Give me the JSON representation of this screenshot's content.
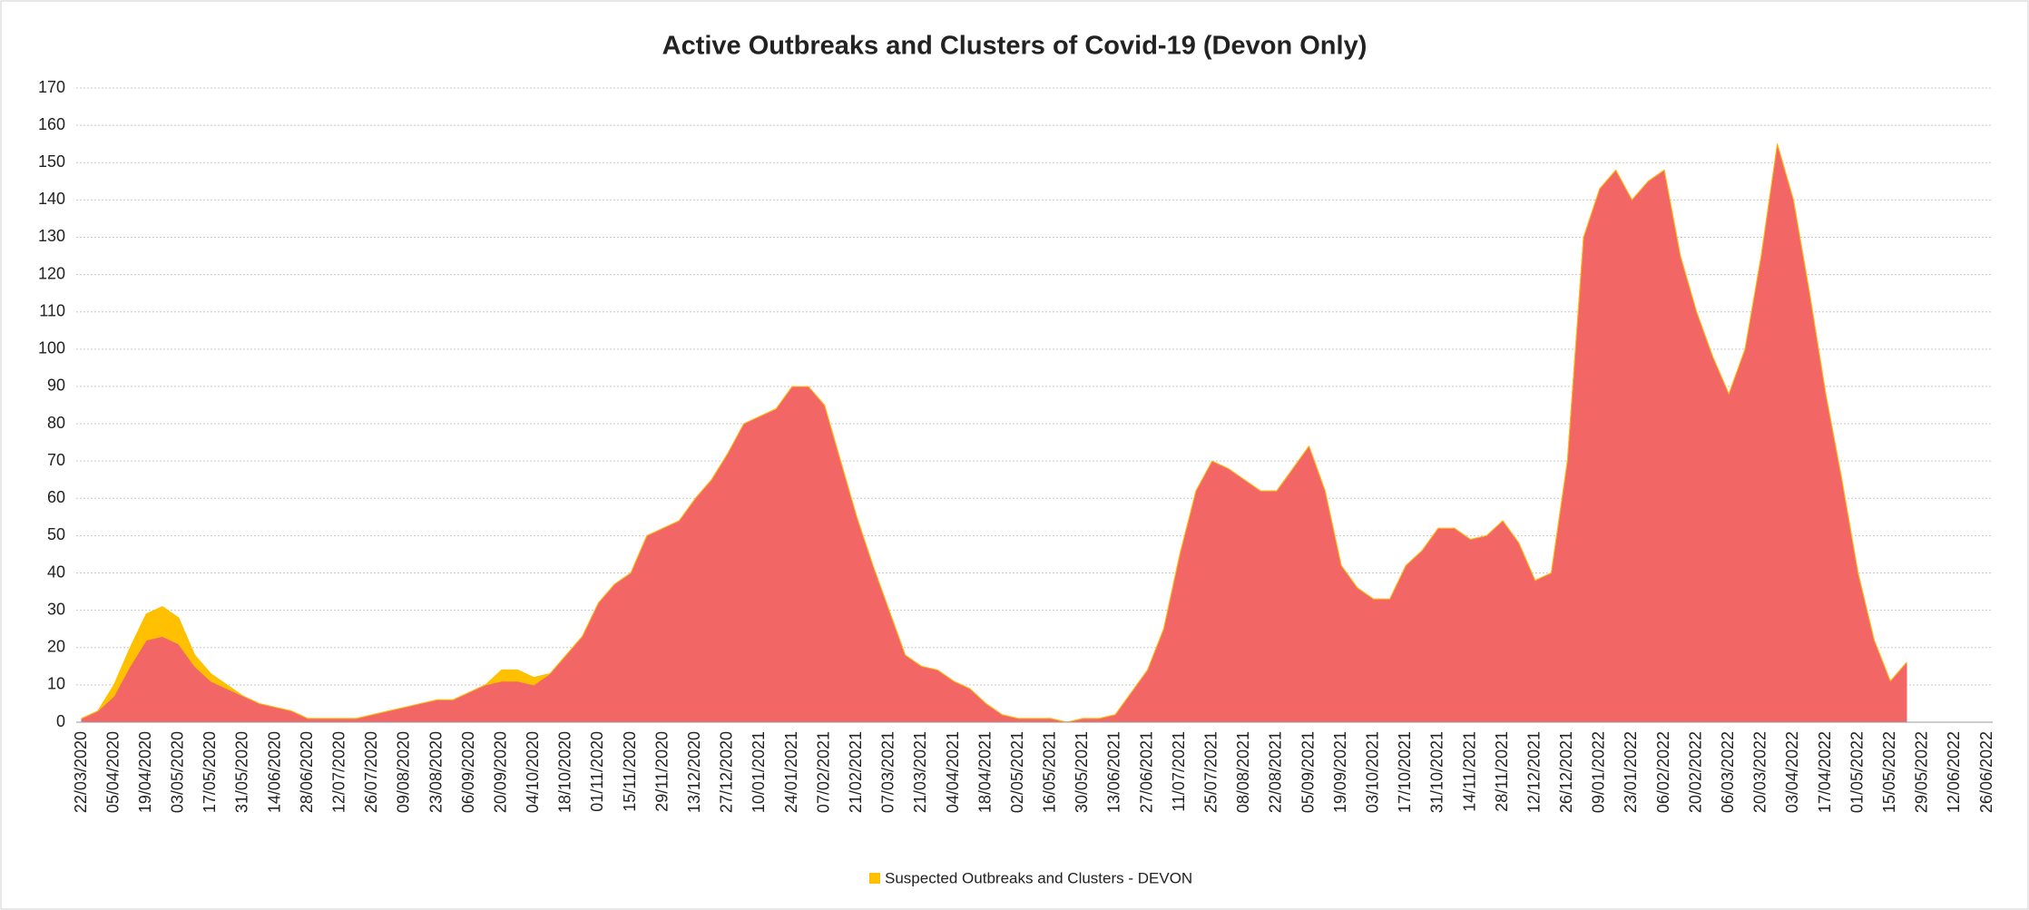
{
  "chart_data": {
    "type": "area",
    "stacked": true,
    "title": "Active Outbreaks and Clusters of Covid-19 (Devon Only)",
    "categories": [
      "22/03/2020",
      null,
      "05/04/2020",
      null,
      "19/04/2020",
      null,
      "03/05/2020",
      null,
      "17/05/2020",
      null,
      "31/05/2020",
      null,
      "14/06/2020",
      null,
      "28/06/2020",
      null,
      "12/07/2020",
      null,
      "26/07/2020",
      null,
      "09/08/2020",
      null,
      "23/08/2020",
      null,
      "06/09/2020",
      null,
      "20/09/2020",
      null,
      "04/10/2020",
      null,
      "18/10/2020",
      null,
      "01/11/2020",
      null,
      "15/11/2020",
      null,
      "29/11/2020",
      null,
      "13/12/2020",
      null,
      "27/12/2020",
      null,
      "10/01/2021",
      null,
      "24/01/2021",
      null,
      "07/02/2021",
      null,
      "21/02/2021",
      null,
      "07/03/2021",
      null,
      "21/03/2021",
      null,
      "04/04/2021",
      null,
      "18/04/2021",
      null,
      "02/05/2021",
      null,
      "16/05/2021",
      null,
      "30/05/2021",
      null,
      "13/06/2021",
      null,
      "27/06/2021",
      null,
      "11/07/2021",
      null,
      "25/07/2021",
      null,
      "08/08/2021",
      null,
      "22/08/2021",
      null,
      "05/09/2021",
      null,
      "19/09/2021",
      null,
      "03/10/2021",
      null,
      "17/10/2021",
      null,
      "31/10/2021",
      null,
      "14/11/2021",
      null,
      "28/11/2021",
      null,
      "12/12/2021",
      null,
      "26/12/2021",
      null,
      "09/01/2022",
      null,
      "23/01/2022",
      null,
      "06/02/2022",
      null,
      "20/02/2022",
      null,
      "06/03/2022",
      null,
      "20/03/2022",
      null,
      "03/04/2022",
      null,
      "17/04/2022",
      null,
      "01/05/2022",
      null,
      "15/05/2022",
      null,
      "29/05/2022",
      null,
      "12/06/2022",
      null,
      "26/06/2022"
    ],
    "series": [
      {
        "color": "#f26666",
        "values": [
          1,
          3,
          7,
          15,
          22,
          23,
          21,
          15,
          11,
          9,
          7,
          5,
          4,
          3,
          1,
          1,
          1,
          1,
          2,
          3,
          4,
          5,
          6,
          6,
          8,
          10,
          11,
          11,
          10,
          13,
          18,
          23,
          32,
          37,
          40,
          50,
          52,
          54,
          60,
          65,
          72,
          80,
          82,
          84,
          90,
          90,
          85,
          70,
          55,
          42,
          30,
          18,
          15,
          14,
          11,
          9,
          5,
          2,
          1,
          1,
          1,
          0,
          1,
          1,
          2,
          8,
          14,
          25,
          45,
          62,
          70,
          68,
          65,
          62,
          62,
          68,
          74,
          62,
          42,
          36,
          33,
          33,
          42,
          46,
          52,
          52,
          49,
          50,
          54,
          48,
          38,
          40,
          70,
          130,
          143,
          148,
          140,
          145,
          148,
          125,
          110,
          98,
          88,
          100,
          125,
          155,
          140,
          115,
          88,
          65,
          40,
          22,
          11,
          16,
          null,
          null,
          null,
          null,
          null
        ]
      },
      {
        "name": "Suspected Outbreaks and Clusters - DEVON",
        "color": "#ffc000",
        "values": [
          0,
          0,
          3,
          5,
          7,
          8,
          7,
          3,
          2,
          1,
          0,
          0,
          0,
          0,
          0,
          0,
          0,
          0,
          0,
          0,
          0,
          0,
          0,
          0,
          0,
          0,
          3,
          3,
          2,
          0,
          0,
          0,
          0,
          0,
          0,
          0,
          0,
          0,
          0,
          0,
          0,
          0,
          0,
          0,
          0,
          0,
          0,
          0,
          0,
          0,
          0,
          0,
          0,
          0,
          0,
          0,
          0,
          0,
          0,
          0,
          0,
          0,
          0,
          0,
          0,
          0,
          0,
          0,
          0,
          0,
          0,
          0,
          0,
          0,
          0,
          0,
          0,
          0,
          0,
          0,
          0,
          0,
          0,
          0,
          0,
          0,
          0,
          0,
          0,
          0,
          0,
          0,
          0,
          0,
          0,
          0,
          0,
          0,
          0,
          0,
          0,
          0,
          0,
          0,
          0,
          0,
          0,
          0,
          0,
          0,
          0,
          0,
          0,
          0,
          null,
          null,
          null,
          null,
          null
        ]
      }
    ],
    "ylim": [
      0,
      170
    ],
    "yticks": [
      0,
      10,
      20,
      30,
      40,
      50,
      60,
      70,
      80,
      90,
      100,
      110,
      120,
      130,
      140,
      150,
      160,
      170
    ],
    "grid": true,
    "legend": "bottom"
  }
}
